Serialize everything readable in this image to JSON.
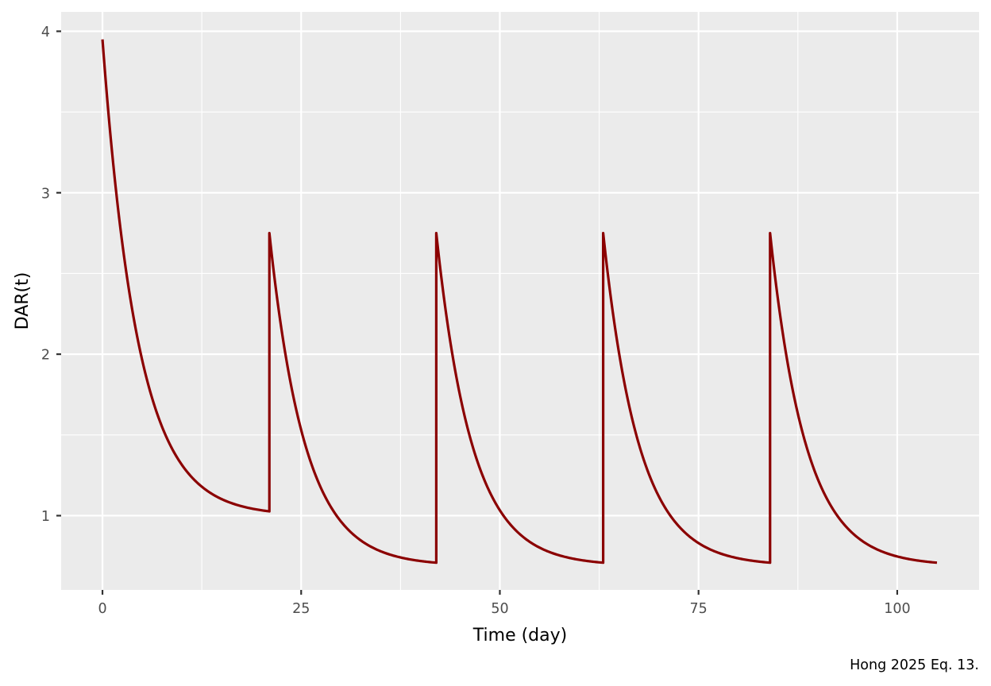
{
  "chart_data": {
    "type": "line",
    "title": "",
    "xlabel": "Time (day)",
    "ylabel": "DAR(t)",
    "caption": "Hong 2025 Eq. 13.",
    "xlim": [
      -5.2,
      110.3
    ],
    "ylim": [
      0.54,
      4.12
    ],
    "x_ticks": [
      0,
      25,
      50,
      75,
      100
    ],
    "x_tick_labels": [
      "0",
      "25",
      "50",
      "75",
      "100"
    ],
    "x_minor_ticks": [
      12.5,
      37.5,
      62.5,
      87.5
    ],
    "y_ticks": [
      1,
      2,
      3,
      4
    ],
    "y_tick_labels": [
      "1",
      "2",
      "3",
      "4"
    ],
    "y_minor_ticks": [
      1.5,
      2.5,
      3.5
    ],
    "grid": true,
    "legend": "none",
    "series": [
      {
        "name": "DAR(t)",
        "color": "#8B0000",
        "description": "Dosing every 21 days; exponential decay of DAR between doses",
        "dose_times": [
          0,
          21,
          42,
          63,
          84
        ],
        "end_time": 105,
        "key_points": [
          {
            "x": 0,
            "y": 3.95
          },
          {
            "x": 5,
            "y": 1.96
          },
          {
            "x": 12.5,
            "y": 1.18
          },
          {
            "x": 21,
            "y": 1.01
          },
          {
            "x": 21,
            "y": 2.75
          },
          {
            "x": 42,
            "y": 0.7
          },
          {
            "x": 42,
            "y": 2.75
          },
          {
            "x": 63,
            "y": 0.7
          },
          {
            "x": 63,
            "y": 2.75
          },
          {
            "x": 84,
            "y": 0.7
          },
          {
            "x": 84,
            "y": 2.75
          },
          {
            "x": 105,
            "y": 0.7
          }
        ],
        "segments": [
          {
            "start": 0,
            "end": 21,
            "floor": 1.0,
            "amplitude": 2.95,
            "rate": 0.224
          },
          {
            "start": 21,
            "end": 42,
            "floor": 0.69,
            "amplitude": 2.06,
            "rate": 0.224
          },
          {
            "start": 42,
            "end": 63,
            "floor": 0.69,
            "amplitude": 2.06,
            "rate": 0.224
          },
          {
            "start": 63,
            "end": 84,
            "floor": 0.69,
            "amplitude": 2.06,
            "rate": 0.224
          },
          {
            "start": 84,
            "end": 105,
            "floor": 0.69,
            "amplitude": 2.06,
            "rate": 0.224
          }
        ]
      }
    ]
  },
  "style": {
    "panel_background": "#EBEBEB",
    "grid_color": "#FFFFFF",
    "line_color": "#8B0000",
    "tick_color": "#333333"
  }
}
